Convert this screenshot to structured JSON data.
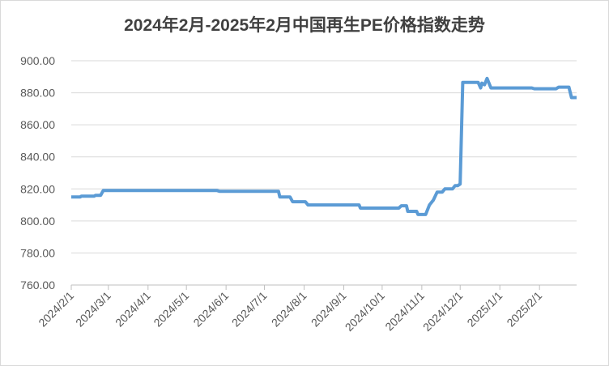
{
  "chart_data": {
    "type": "line",
    "title": "2024年2月-2025年2月中国再生PE价格指数走势",
    "x": [
      "2024/2/1",
      "2024/2/8",
      "2024/2/9",
      "2024/2/19",
      "2024/2/20",
      "2024/2/24",
      "2024/2/26",
      "2024/5/25",
      "2024/5/27",
      "2024/7/12",
      "2024/7/13",
      "2024/7/21",
      "2024/7/23",
      "2024/8/2",
      "2024/8/4",
      "2024/9/13",
      "2024/9/14",
      "2024/10/14",
      "2024/10/16",
      "2024/10/20",
      "2024/10/21",
      "2024/10/28",
      "2024/10/29",
      "2024/11/4",
      "2024/11/7",
      "2024/11/10",
      "2024/11/13",
      "2024/11/17",
      "2024/11/19",
      "2024/11/25",
      "2024/11/27",
      "2024/11/29",
      "2024/12/1",
      "2024/12/3",
      "2024/12/15",
      "2024/12/17",
      "2024/12/18",
      "2024/12/20",
      "2024/12/22",
      "2024/12/25",
      "2024/12/27",
      "2025/1/26",
      "2025/1/28",
      "2025/2/14",
      "2025/2/16",
      "2025/2/24",
      "2025/2/26",
      "2025/3/2"
    ],
    "series": [
      {
        "name": "再生PE价格指数",
        "color": "#5b9bd5",
        "values": [
          815,
          815,
          815.5,
          815.5,
          816,
          816,
          819,
          819,
          818.5,
          818.5,
          815,
          815,
          812,
          812,
          810,
          810,
          808,
          808,
          809.5,
          809.5,
          806,
          806,
          804,
          804,
          810,
          813,
          818,
          818,
          820,
          820,
          822,
          822,
          823,
          886.5,
          886.5,
          883,
          886,
          885,
          889,
          883,
          883,
          883,
          882.5,
          882.5,
          883.5,
          883.5,
          877,
          877
        ]
      }
    ],
    "xlim": [
      "2024/2/1",
      "2025/3/2"
    ],
    "xticks": [
      "2024/2/1",
      "2024/3/1",
      "2024/4/1",
      "2024/5/1",
      "2024/6/1",
      "2024/7/1",
      "2024/8/1",
      "2024/9/1",
      "2024/10/1",
      "2024/11/1",
      "2024/12/1",
      "2025/1/1",
      "2025/2/1"
    ],
    "ylim": [
      760,
      900
    ],
    "yticks": [
      {
        "value": 760,
        "label": "760.00"
      },
      {
        "value": 780,
        "label": "780.00"
      },
      {
        "value": 800,
        "label": "800.00"
      },
      {
        "value": 820,
        "label": "820.00"
      },
      {
        "value": 840,
        "label": "840.00"
      },
      {
        "value": 860,
        "label": "860.00"
      },
      {
        "value": 880,
        "label": "880.00"
      },
      {
        "value": 900,
        "label": "900.00"
      }
    ],
    "grid": true
  }
}
